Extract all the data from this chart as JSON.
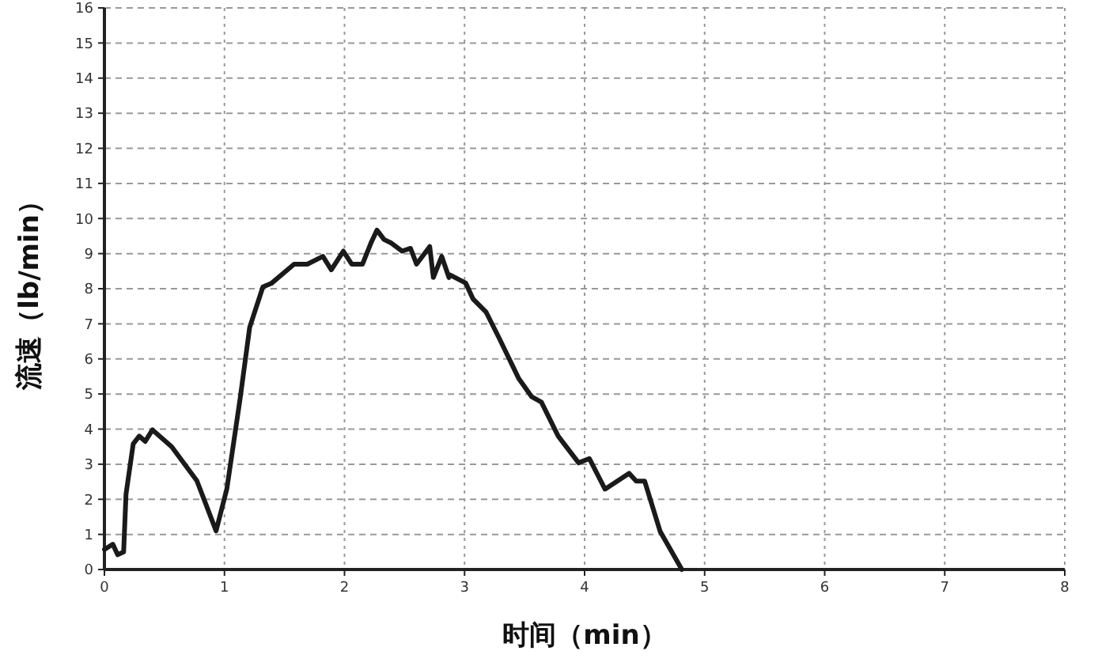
{
  "chart_data": {
    "type": "line",
    "xlabel": "时间（min）",
    "ylabel": "流速（lb/min）",
    "xlim": [
      0,
      8
    ],
    "ylim": [
      0,
      16
    ],
    "xticks": [
      0,
      1,
      2,
      3,
      4,
      5,
      6,
      7,
      8
    ],
    "yticks": [
      0,
      1,
      2,
      3,
      4,
      5,
      6,
      7,
      8,
      9,
      10,
      11,
      12,
      13,
      14,
      15,
      16
    ],
    "grid": true,
    "marker": "none",
    "line_style": "solid",
    "series": [
      {
        "color": "#1a1a1a",
        "x": [
          0,
          0.07,
          0.11,
          0.16,
          0.18,
          0.24,
          0.29,
          0.34,
          0.4,
          0.56,
          0.77,
          0.93,
          1.02,
          1.13,
          1.21,
          1.32,
          1.39,
          1.58,
          1.69,
          1.82,
          1.89,
          1.99,
          2.06,
          2.15,
          2.22,
          2.27,
          2.33,
          2.39,
          2.48,
          2.55,
          2.6,
          2.71,
          2.74,
          2.81,
          2.87,
          2.88,
          3.01,
          3.07,
          3.18,
          3.29,
          3.45,
          3.56,
          3.64,
          3.78,
          3.95,
          4.04,
          4.17,
          4.37,
          4.43,
          4.5,
          4.63,
          4.81
        ],
        "values": [
          0.57,
          0.72,
          0.42,
          0.5,
          2.15,
          3.58,
          3.8,
          3.65,
          3.98,
          3.5,
          2.53,
          1.1,
          2.3,
          4.86,
          6.9,
          8.05,
          8.15,
          8.7,
          8.7,
          8.92,
          8.54,
          9.07,
          8.7,
          8.7,
          9.3,
          9.67,
          9.4,
          9.3,
          9.07,
          9.15,
          8.7,
          9.2,
          8.32,
          8.92,
          8.32,
          8.39,
          8.16,
          7.71,
          7.33,
          6.58,
          5.45,
          4.92,
          4.77,
          3.8,
          3.04,
          3.16,
          2.29,
          2.74,
          2.52,
          2.52,
          1.08,
          0
        ]
      }
    ]
  }
}
